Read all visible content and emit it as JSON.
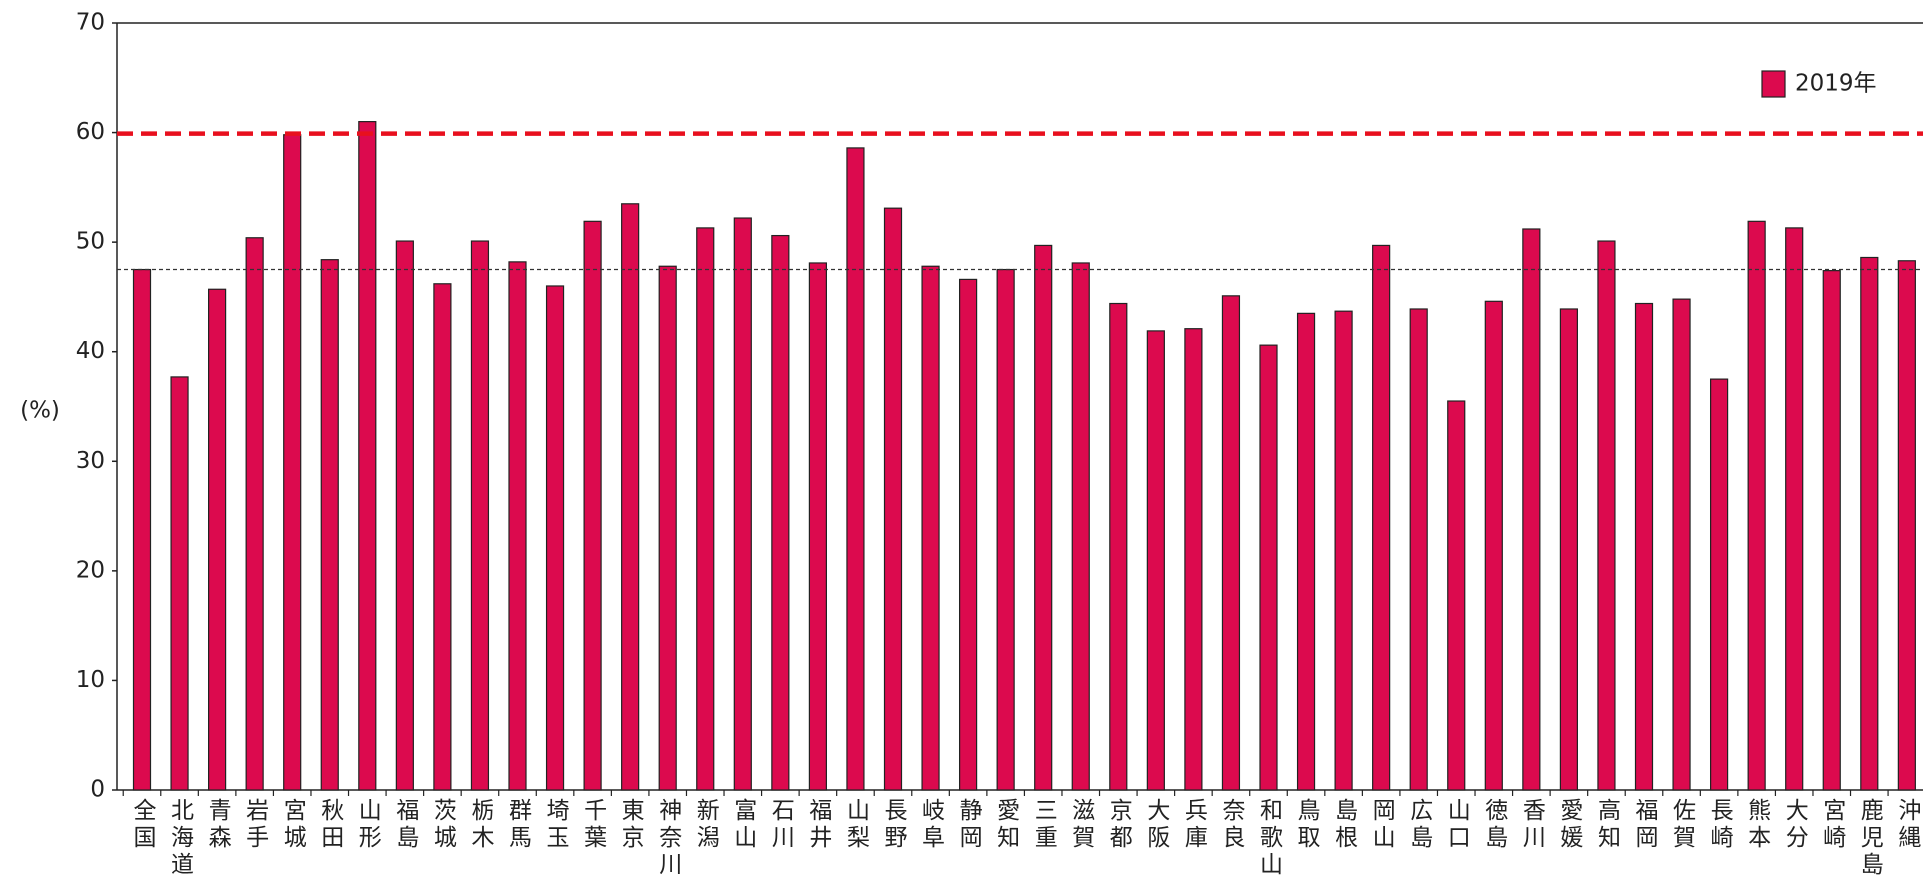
{
  "chart_data": {
    "type": "bar",
    "y_label": "(%)",
    "categories": [
      "全国",
      "北海道",
      "青森",
      "岩手",
      "宮城",
      "秋田",
      "山形",
      "福島",
      "茨城",
      "栃木",
      "群馬",
      "埼玉",
      "千葉",
      "東京",
      "神奈川",
      "新潟",
      "富山",
      "石川",
      "福井",
      "山梨",
      "長野",
      "岐阜",
      "静岡",
      "愛知",
      "三重",
      "滋賀",
      "京都",
      "大阪",
      "兵庫",
      "奈良",
      "和歌山",
      "鳥取",
      "島根",
      "岡山",
      "広島",
      "山口",
      "徳島",
      "香川",
      "愛媛",
      "高知",
      "福岡",
      "佐賀",
      "長崎",
      "熊本",
      "大分",
      "宮崎",
      "鹿児島",
      "沖縄"
    ],
    "series": [
      {
        "name": "2019年",
        "color": "#dc0a4e",
        "values": [
          47.5,
          37.7,
          45.7,
          50.4,
          59.8,
          48.4,
          61.0,
          50.1,
          46.2,
          50.1,
          48.2,
          46.0,
          51.9,
          53.5,
          47.8,
          51.3,
          52.2,
          50.6,
          48.1,
          58.6,
          53.1,
          47.8,
          46.6,
          47.5,
          49.7,
          48.1,
          44.4,
          41.9,
          42.1,
          45.1,
          40.6,
          43.5,
          43.7,
          49.7,
          43.9,
          35.5,
          44.6,
          51.2,
          43.9,
          50.1,
          44.4,
          44.8,
          37.5,
          51.9,
          51.3,
          47.4,
          48.6,
          48.3
        ]
      }
    ],
    "reference_lines": [
      {
        "value": 59.9,
        "color": "#e8101e"
      },
      {
        "value": 47.5,
        "color": "#333333"
      }
    ],
    "ylim": [
      0,
      70
    ],
    "yticks": [
      0,
      10,
      20,
      30,
      40,
      50,
      60,
      70
    ],
    "legend": "upper right",
    "grid": false
  }
}
